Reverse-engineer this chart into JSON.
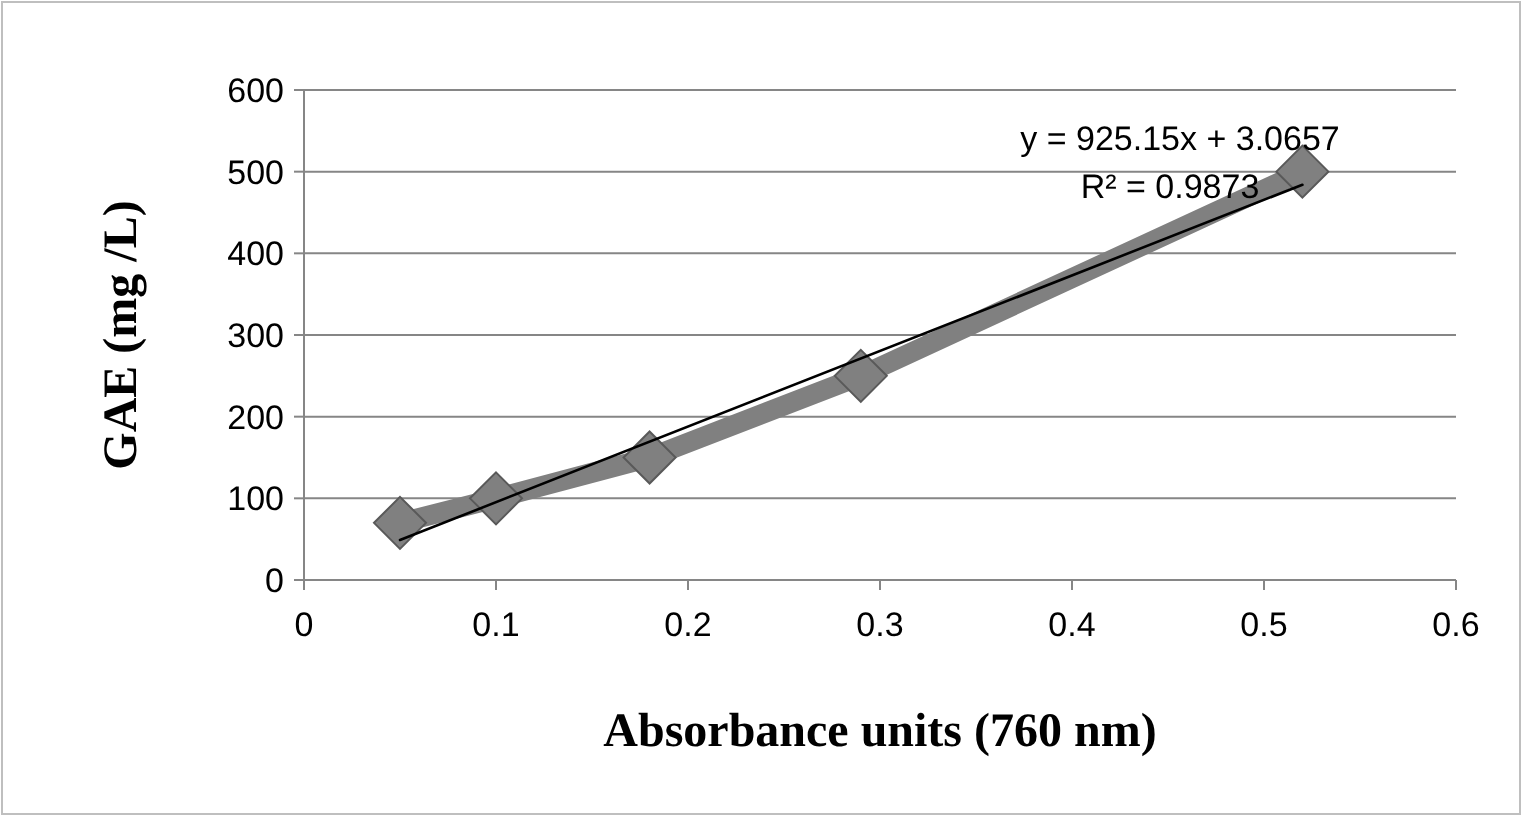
{
  "chart_data": {
    "type": "line",
    "xlabel": "Absorbance units (760 nm)",
    "ylabel": "GAE (mg /L)",
    "xlim": [
      0,
      0.6
    ],
    "xticks": [
      0,
      0.1,
      0.2,
      0.3,
      0.4,
      0.5,
      0.6
    ],
    "ylim": [
      0,
      600
    ],
    "yticks": [
      0,
      100,
      200,
      300,
      400,
      500,
      600
    ],
    "grid": "y",
    "series": [
      {
        "color": "#808080",
        "marker": "diamond",
        "x": [
          0.05,
          0.1,
          0.18,
          0.29,
          0.52
        ],
        "values": [
          70,
          100,
          150,
          250,
          500
        ]
      },
      {
        "color": "#000000",
        "marker": "none",
        "x": [
          0.05,
          0.52
        ],
        "values": [
          49,
          484
        ]
      }
    ],
    "annotations": [
      "y = 925.15x + 3.0657",
      "R² = 0.9873"
    ]
  }
}
